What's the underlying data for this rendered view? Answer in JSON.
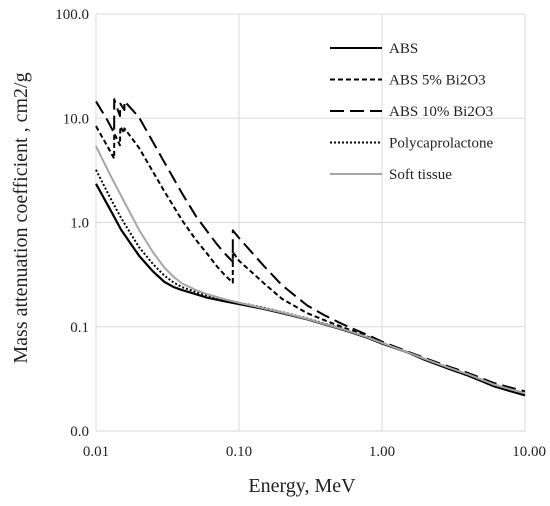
{
  "chart_data": {
    "type": "line",
    "title": "",
    "xlabel": "Energy, MeV",
    "ylabel": "Mass attenuation coefficient , cm2/g",
    "x_scale": "log",
    "y_scale": "log",
    "xlim": [
      0.01,
      10
    ],
    "ylim": [
      0.01,
      100
    ],
    "grid": true,
    "legend_position": "top-right",
    "x_ticks": [
      {
        "value": 0.01,
        "label": "0.01"
      },
      {
        "value": 0.1,
        "label": "0.10"
      },
      {
        "value": 1,
        "label": "1.00"
      },
      {
        "value": 10,
        "label": "10.00"
      }
    ],
    "y_ticks": [
      {
        "value": 0.01,
        "label": "0.0"
      },
      {
        "value": 0.1,
        "label": "0.1"
      },
      {
        "value": 1,
        "label": "1.0"
      },
      {
        "value": 10,
        "label": "10.0"
      },
      {
        "value": 100,
        "label": "100.0"
      }
    ],
    "series": [
      {
        "name": "ABS",
        "color": "#000000",
        "dash": "solid",
        "points": [
          [
            0.01,
            2.35
          ],
          [
            0.0125,
            1.35
          ],
          [
            0.015,
            0.85
          ],
          [
            0.02,
            0.48
          ],
          [
            0.025,
            0.34
          ],
          [
            0.03,
            0.27
          ],
          [
            0.035,
            0.24
          ],
          [
            0.04,
            0.225
          ],
          [
            0.05,
            0.205
          ],
          [
            0.06,
            0.19
          ],
          [
            0.08,
            0.175
          ],
          [
            0.1,
            0.165
          ],
          [
            0.15,
            0.148
          ],
          [
            0.2,
            0.135
          ],
          [
            0.3,
            0.118
          ],
          [
            0.4,
            0.105
          ],
          [
            0.5,
            0.096
          ],
          [
            0.6,
            0.089
          ],
          [
            0.8,
            0.078
          ],
          [
            1,
            0.069
          ],
          [
            1.5,
            0.057
          ],
          [
            2,
            0.048
          ],
          [
            3,
            0.039
          ],
          [
            4,
            0.034
          ],
          [
            5,
            0.03
          ],
          [
            6,
            0.027
          ],
          [
            8,
            0.024
          ],
          [
            10,
            0.022
          ]
        ]
      },
      {
        "name": "ABS 5% Bi2O3",
        "color": "#000000",
        "dash": "short",
        "points": [
          [
            0.01,
            8.4
          ],
          [
            0.012,
            5.4
          ],
          [
            0.0134,
            4.1
          ],
          [
            0.01341,
            7.2
          ],
          [
            0.0147,
            5.5
          ],
          [
            0.0148,
            8.3
          ],
          [
            0.0158,
            7.2
          ],
          [
            0.01581,
            8.0
          ],
          [
            0.02,
            5.2
          ],
          [
            0.03,
            2.0
          ],
          [
            0.04,
            1.05
          ],
          [
            0.05,
            0.68
          ],
          [
            0.06,
            0.5
          ],
          [
            0.07,
            0.38
          ],
          [
            0.08,
            0.31
          ],
          [
            0.0905,
            0.265
          ],
          [
            0.09051,
            0.52
          ],
          [
            0.1,
            0.43
          ],
          [
            0.15,
            0.26
          ],
          [
            0.2,
            0.185
          ],
          [
            0.3,
            0.135
          ],
          [
            0.4,
            0.115
          ],
          [
            0.5,
            0.102
          ],
          [
            0.6,
            0.093
          ],
          [
            0.8,
            0.08
          ],
          [
            1,
            0.07
          ],
          [
            1.5,
            0.057
          ],
          [
            2,
            0.049
          ],
          [
            3,
            0.04
          ],
          [
            4,
            0.035
          ],
          [
            5,
            0.031
          ],
          [
            6,
            0.028
          ],
          [
            8,
            0.025
          ],
          [
            10,
            0.023
          ]
        ]
      },
      {
        "name": "ABS 10% Bi2O3",
        "color": "#000000",
        "dash": "long",
        "points": [
          [
            0.01,
            14.5
          ],
          [
            0.012,
            9.6
          ],
          [
            0.0134,
            7.2
          ],
          [
            0.01341,
            15.2
          ],
          [
            0.0147,
            10.5
          ],
          [
            0.0148,
            13.8
          ],
          [
            0.0158,
            12.0
          ],
          [
            0.01581,
            14.6
          ],
          [
            0.02,
            10.2
          ],
          [
            0.03,
            3.8
          ],
          [
            0.04,
            1.9
          ],
          [
            0.05,
            1.15
          ],
          [
            0.06,
            0.82
          ],
          [
            0.07,
            0.62
          ],
          [
            0.08,
            0.5
          ],
          [
            0.0905,
            0.42
          ],
          [
            0.09051,
            0.84
          ],
          [
            0.1,
            0.71
          ],
          [
            0.15,
            0.38
          ],
          [
            0.2,
            0.25
          ],
          [
            0.3,
            0.16
          ],
          [
            0.4,
            0.128
          ],
          [
            0.5,
            0.11
          ],
          [
            0.6,
            0.098
          ],
          [
            0.8,
            0.083
          ],
          [
            1,
            0.072
          ],
          [
            1.5,
            0.058
          ],
          [
            2,
            0.05
          ],
          [
            3,
            0.041
          ],
          [
            4,
            0.036
          ],
          [
            5,
            0.032
          ],
          [
            6,
            0.029
          ],
          [
            8,
            0.026
          ],
          [
            10,
            0.024
          ]
        ]
      },
      {
        "name": "Polycaprolactone",
        "color": "#000000",
        "dash": "dotted",
        "points": [
          [
            0.01,
            3.2
          ],
          [
            0.0125,
            1.75
          ],
          [
            0.015,
            1.1
          ],
          [
            0.02,
            0.58
          ],
          [
            0.025,
            0.4
          ],
          [
            0.03,
            0.31
          ],
          [
            0.035,
            0.265
          ],
          [
            0.04,
            0.24
          ],
          [
            0.05,
            0.215
          ],
          [
            0.06,
            0.2
          ],
          [
            0.08,
            0.182
          ],
          [
            0.1,
            0.17
          ],
          [
            0.15,
            0.152
          ],
          [
            0.2,
            0.138
          ],
          [
            0.3,
            0.12
          ],
          [
            0.4,
            0.107
          ],
          [
            0.5,
            0.098
          ],
          [
            0.6,
            0.09
          ],
          [
            0.8,
            0.079
          ],
          [
            1,
            0.07
          ],
          [
            1.5,
            0.057
          ],
          [
            2,
            0.049
          ],
          [
            3,
            0.04
          ],
          [
            4,
            0.034
          ],
          [
            5,
            0.03
          ],
          [
            6,
            0.027
          ],
          [
            8,
            0.024
          ],
          [
            10,
            0.022
          ]
        ]
      },
      {
        "name": "Soft tissue",
        "color": "#a6a6a6",
        "dash": "solid",
        "points": [
          [
            0.01,
            5.4
          ],
          [
            0.0125,
            2.9
          ],
          [
            0.015,
            1.8
          ],
          [
            0.02,
            0.85
          ],
          [
            0.025,
            0.52
          ],
          [
            0.03,
            0.37
          ],
          [
            0.035,
            0.3
          ],
          [
            0.04,
            0.26
          ],
          [
            0.05,
            0.225
          ],
          [
            0.06,
            0.205
          ],
          [
            0.08,
            0.183
          ],
          [
            0.1,
            0.17
          ],
          [
            0.15,
            0.15
          ],
          [
            0.2,
            0.137
          ],
          [
            0.3,
            0.119
          ],
          [
            0.4,
            0.106
          ],
          [
            0.5,
            0.097
          ],
          [
            0.6,
            0.09
          ],
          [
            0.8,
            0.079
          ],
          [
            1,
            0.07
          ],
          [
            1.5,
            0.057
          ],
          [
            2,
            0.049
          ],
          [
            3,
            0.04
          ],
          [
            4,
            0.035
          ],
          [
            5,
            0.031
          ],
          [
            6,
            0.028
          ],
          [
            8,
            0.025
          ],
          [
            10,
            0.023
          ]
        ]
      }
    ]
  }
}
